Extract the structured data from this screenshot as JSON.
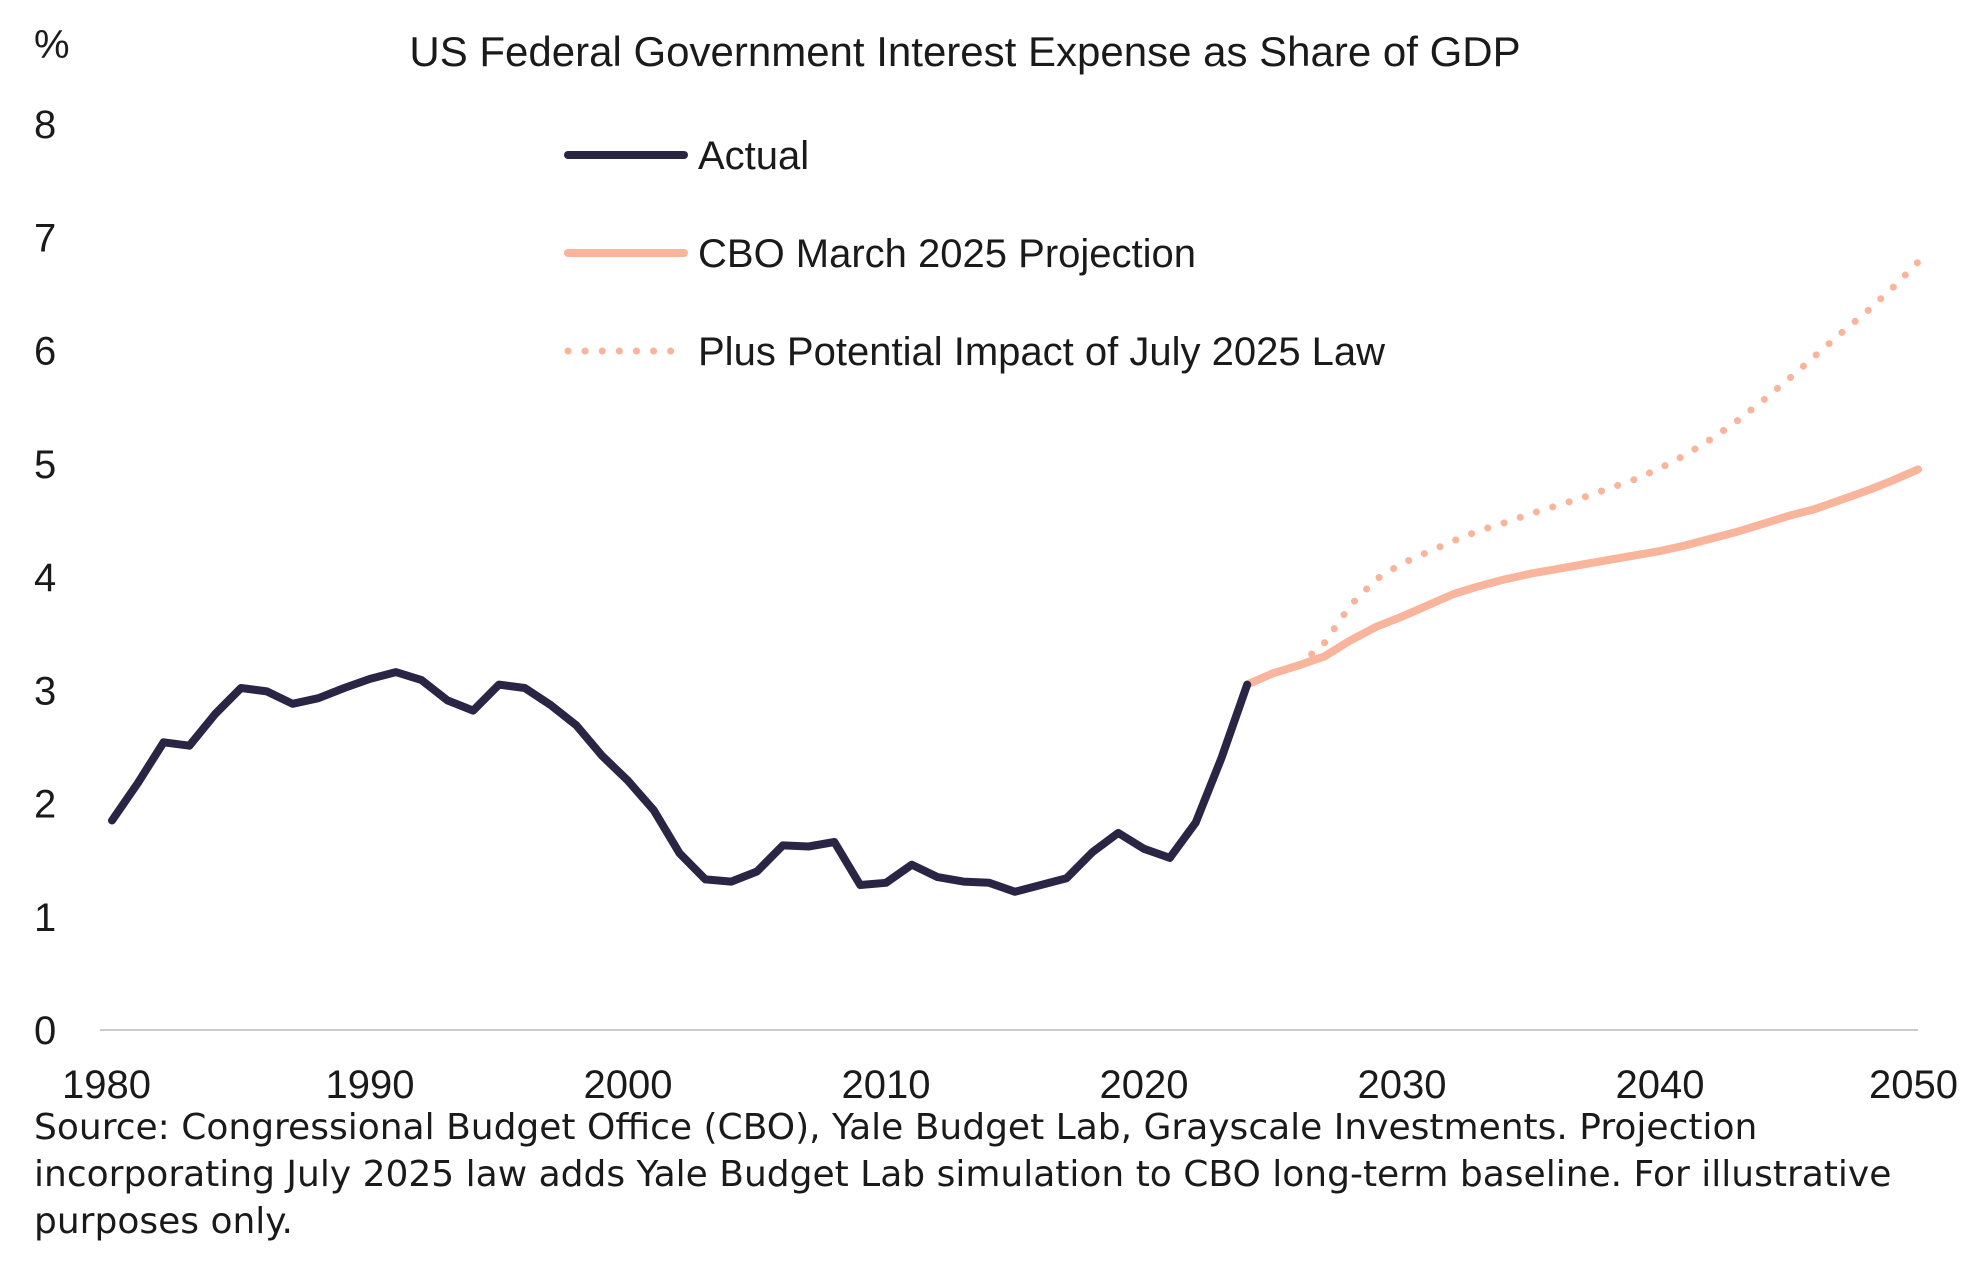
{
  "chart_data": {
    "type": "line",
    "title": "US Federal Government Interest Expense as Share of GDP",
    "ylabel": "%",
    "xlabel": "",
    "xlim": [
      1980,
      2050
    ],
    "ylim": [
      0,
      8
    ],
    "x_ticks": [
      "1980",
      "1990",
      "2000",
      "2010",
      "2020",
      "2030",
      "2040",
      "2050"
    ],
    "y_ticks": [
      "0",
      "1",
      "2",
      "3",
      "4",
      "5",
      "6",
      "7",
      "8"
    ],
    "grid": false,
    "legend_position": "top-center",
    "series": [
      {
        "name": "Actual",
        "color": "#2b2545",
        "style": "solid",
        "x": [
          1980,
          1981,
          1982,
          1983,
          1984,
          1985,
          1986,
          1987,
          1988,
          1989,
          1990,
          1991,
          1992,
          1993,
          1994,
          1995,
          1996,
          1997,
          1998,
          1999,
          2000,
          2001,
          2002,
          2003,
          2004,
          2005,
          2006,
          2007,
          2008,
          2009,
          2010,
          2011,
          2012,
          2013,
          2014,
          2015,
          2016,
          2017,
          2018,
          2019,
          2020,
          2021,
          2022,
          2023,
          2024
        ],
        "values": [
          1.85,
          2.18,
          2.54,
          2.51,
          2.79,
          3.02,
          2.99,
          2.88,
          2.93,
          3.02,
          3.1,
          3.16,
          3.09,
          2.91,
          2.82,
          3.05,
          3.02,
          2.87,
          2.69,
          2.42,
          2.2,
          1.94,
          1.56,
          1.33,
          1.31,
          1.4,
          1.63,
          1.62,
          1.66,
          1.28,
          1.3,
          1.46,
          1.35,
          1.31,
          1.3,
          1.22,
          1.28,
          1.34,
          1.57,
          1.74,
          1.6,
          1.52,
          1.83,
          2.4,
          3.05
        ]
      },
      {
        "name": "CBO March 2025 Projection",
        "color": "#f9b49c",
        "style": "solid",
        "x": [
          2024,
          2025,
          2026,
          2027,
          2028,
          2029,
          2030,
          2031,
          2032,
          2033,
          2034,
          2035,
          2036,
          2037,
          2038,
          2039,
          2040,
          2041,
          2042,
          2043,
          2044,
          2045,
          2046,
          2047,
          2048,
          2049,
          2050
        ],
        "values": [
          3.05,
          3.15,
          3.22,
          3.3,
          3.44,
          3.56,
          3.65,
          3.75,
          3.85,
          3.92,
          3.98,
          4.03,
          4.07,
          4.11,
          4.15,
          4.19,
          4.23,
          4.28,
          4.34,
          4.4,
          4.47,
          4.54,
          4.6,
          4.68,
          4.76,
          4.85,
          4.95
        ]
      },
      {
        "name": "Plus Potential Impact of July 2025 Law",
        "color": "#f9b49c",
        "style": "dotted",
        "x": [
          2026,
          2027,
          2028,
          2029,
          2030,
          2031,
          2032,
          2033,
          2034,
          2035,
          2036,
          2037,
          2038,
          2039,
          2040,
          2041,
          2042,
          2043,
          2044,
          2045,
          2046,
          2047,
          2048,
          2049,
          2050
        ],
        "values": [
          3.22,
          3.42,
          3.75,
          3.98,
          4.12,
          4.22,
          4.32,
          4.41,
          4.48,
          4.56,
          4.63,
          4.7,
          4.78,
          4.86,
          4.96,
          5.08,
          5.22,
          5.38,
          5.56,
          5.75,
          5.95,
          6.15,
          6.34,
          6.55,
          6.78
        ]
      }
    ]
  },
  "footer": {
    "source_text": "Source: Congressional Budget Office (CBO), Yale Budget Lab, Grayscale Investments. Projection incorporating July 2025 law adds Yale Budget Lab simulation to CBO long-term baseline. For illustrative purposes only."
  }
}
